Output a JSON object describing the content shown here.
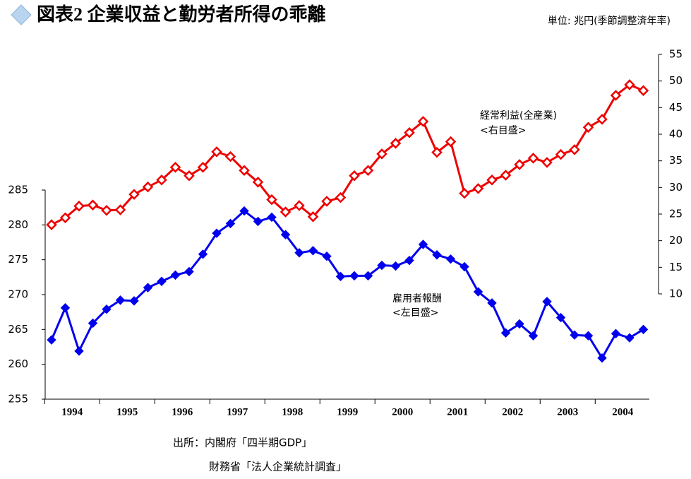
{
  "chart_data": {
    "type": "line",
    "title": "図表2 企業収益と勤労者所得の乖離",
    "unit": "単位: 兆円(季節調整済年率)",
    "categories": [
      "1994",
      null,
      null,
      null,
      "1995",
      null,
      null,
      null,
      "1996",
      null,
      null,
      null,
      "1997",
      null,
      null,
      null,
      "1998",
      null,
      null,
      null,
      "1999",
      null,
      null,
      null,
      "2000",
      null,
      null,
      null,
      "2001",
      null,
      null,
      null,
      "2002",
      null,
      null,
      null,
      "2003",
      null,
      null,
      null,
      "2004",
      null,
      null,
      null
    ],
    "series": [
      {
        "name": "雇用者報酬",
        "color": "#0000ee",
        "axis": "y",
        "scale_note": "<左目盛>",
        "values": [
          263.5,
          268.1,
          261.9,
          265.9,
          267.9,
          269.2,
          269.1,
          271.0,
          271.9,
          272.8,
          273.3,
          275.8,
          278.8,
          280.2,
          282.0,
          280.5,
          281.1,
          278.6,
          276.0,
          276.3,
          275.5,
          272.6,
          272.7,
          272.7,
          274.2,
          274.1,
          274.9,
          277.2,
          275.7,
          275.1,
          274.0,
          270.4,
          268.8,
          264.5,
          265.8,
          264.1,
          269.0,
          266.7,
          264.2,
          264.1,
          260.9,
          264.4,
          263.8,
          265.0
        ]
      },
      {
        "name": "経常利益(全産業)",
        "color": "#ee0000",
        "axis": "y2",
        "scale_note": "<右目盛>",
        "values": [
          23.0,
          24.3,
          26.5,
          26.7,
          25.7,
          25.8,
          28.7,
          30.1,
          31.4,
          33.8,
          32.2,
          33.8,
          36.7,
          35.8,
          33.2,
          31.0,
          27.7,
          25.4,
          26.6,
          24.5,
          27.4,
          28.1,
          32.2,
          33.2,
          36.3,
          38.3,
          40.3,
          42.4,
          36.6,
          38.6,
          28.9,
          29.8,
          31.4,
          32.3,
          34.3,
          35.5,
          34.7,
          36.2,
          37.1,
          41.3,
          42.8,
          47.3,
          49.3,
          48.2
        ]
      }
    ],
    "ylim": [
      255,
      285
    ],
    "yticks": [
      255,
      260,
      265,
      270,
      275,
      280,
      285
    ],
    "y2lim": [
      10,
      55
    ],
    "y2ticks": [
      10,
      15,
      20,
      25,
      30,
      35,
      40,
      45,
      50,
      55
    ],
    "source": [
      "出所：内閣府「四半期GDP」",
      "財務省「法人企業統計調査」"
    ]
  }
}
